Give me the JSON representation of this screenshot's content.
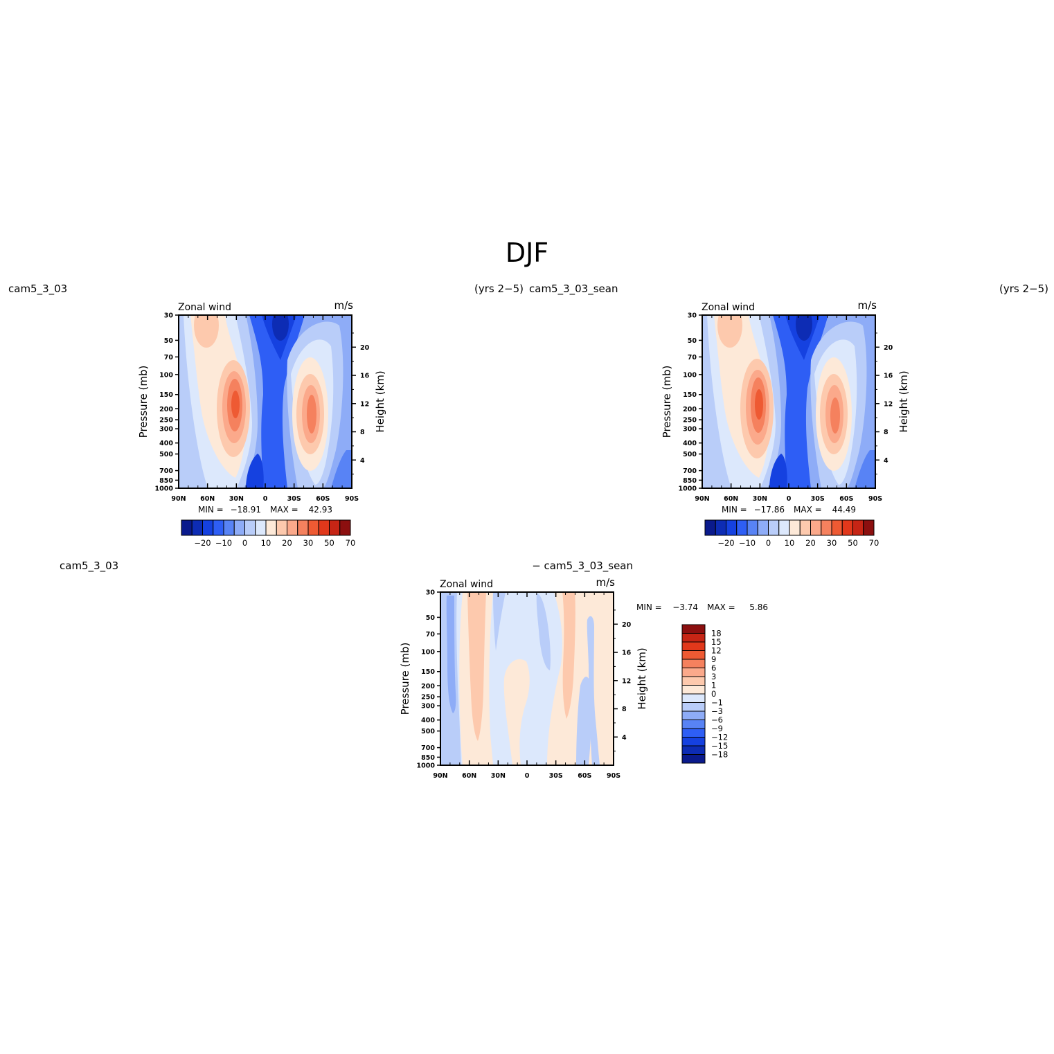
{
  "page": {
    "title": "DJF"
  },
  "chart_data": [
    {
      "id": "panel1",
      "type": "heatmap",
      "title": "Zonal wind",
      "units": "m/s",
      "left_string": "cam5_3_03",
      "right_string": "(yrs 2−5)",
      "ylabel": "Pressure (mb)",
      "ylabel_right": "Height (km)",
      "x_ticks": [
        "90N",
        "60N",
        "30N",
        "0",
        "30S",
        "60S",
        "90S"
      ],
      "y_ticks": [
        "30",
        "50",
        "70",
        "100",
        "150",
        "200",
        "250",
        "300",
        "400",
        "500",
        "700",
        "850",
        "1000"
      ],
      "height_ticks": [
        "4",
        "8",
        "12",
        "16",
        "20"
      ],
      "min_label": "MIN =",
      "min_value": "−18.91",
      "max_label": "MAX =",
      "max_value": "42.93",
      "colorbar_labels": [
        "−20",
        "−10",
        "0",
        "10",
        "20",
        "30",
        "50",
        "70"
      ]
    },
    {
      "id": "panel2",
      "type": "heatmap",
      "title": "Zonal wind",
      "units": "m/s",
      "left_string": "cam5_3_03_sean",
      "right_string": "(yrs 2−5)",
      "ylabel": "Pressure (mb)",
      "ylabel_right": "Height (km)",
      "x_ticks": [
        "90N",
        "60N",
        "30N",
        "0",
        "30S",
        "60S",
        "90S"
      ],
      "y_ticks": [
        "30",
        "50",
        "70",
        "100",
        "150",
        "200",
        "250",
        "300",
        "400",
        "500",
        "700",
        "850",
        "1000"
      ],
      "height_ticks": [
        "4",
        "8",
        "12",
        "16",
        "20"
      ],
      "min_label": "MIN =",
      "min_value": "−17.86",
      "max_label": "MAX =",
      "max_value": "44.49",
      "colorbar_labels": [
        "−20",
        "−10",
        "0",
        "10",
        "20",
        "30",
        "50",
        "70"
      ]
    },
    {
      "id": "panel3",
      "type": "heatmap",
      "title": "Zonal wind",
      "units": "m/s",
      "left_string": "cam5_3_03",
      "right_string": "− cam5_3_03_sean",
      "ylabel": "Pressure (mb)",
      "ylabel_right": "Height (km)",
      "x_ticks": [
        "90N",
        "60N",
        "30N",
        "0",
        "30S",
        "60S",
        "90S"
      ],
      "y_ticks": [
        "30",
        "50",
        "70",
        "100",
        "150",
        "200",
        "250",
        "300",
        "400",
        "500",
        "700",
        "850",
        "1000"
      ],
      "height_ticks": [
        "4",
        "8",
        "12",
        "16",
        "20"
      ],
      "min_label": "MIN =",
      "min_value": "−3.74",
      "max_label": "MAX =",
      "max_value": "5.86",
      "colorbar_labels": [
        "18",
        "15",
        "12",
        "9",
        "6",
        "3",
        "1",
        "0",
        "−1",
        "−3",
        "−6",
        "−9",
        "−12",
        "−15",
        "−18"
      ]
    }
  ],
  "colors": {
    "diverging": [
      "#0a1a8c",
      "#0d2cb4",
      "#1541e0",
      "#2e5ef5",
      "#5883f5",
      "#8eacf7",
      "#b9cdf9",
      "#dce8fc",
      "#fde9d8",
      "#fdc9ad",
      "#fba98b",
      "#f5815e",
      "#ee5a33",
      "#e1381b",
      "#c62515",
      "#8c0f0f"
    ]
  }
}
